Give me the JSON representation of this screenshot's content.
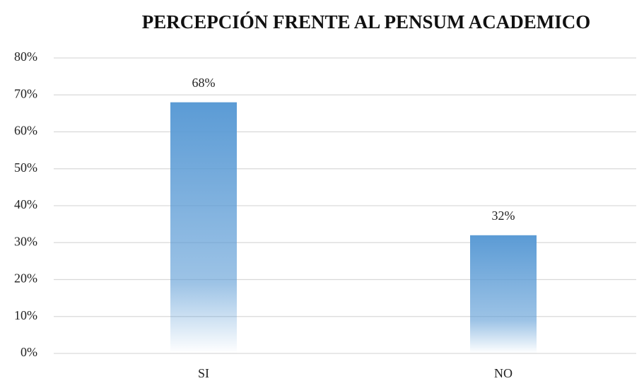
{
  "chart_data": {
    "type": "bar",
    "title": "PERCEPCIÓN FRENTE AL PENSUM ACADEMICO",
    "categories": [
      "SI",
      "NO"
    ],
    "values": [
      68,
      32
    ],
    "value_labels": [
      "68%",
      "32%"
    ],
    "color": "#5b9bd5",
    "ylim": [
      0,
      80
    ],
    "yticks": [
      {
        "value": 0,
        "label": "0%"
      },
      {
        "value": 10,
        "label": "10%"
      },
      {
        "value": 20,
        "label": "20%"
      },
      {
        "value": 30,
        "label": "30%"
      },
      {
        "value": 40,
        "label": "40%"
      },
      {
        "value": 50,
        "label": "50%"
      },
      {
        "value": 60,
        "label": "60%"
      },
      {
        "value": 70,
        "label": "70%"
      },
      {
        "value": 80,
        "label": "80%"
      }
    ],
    "grid": true
  }
}
